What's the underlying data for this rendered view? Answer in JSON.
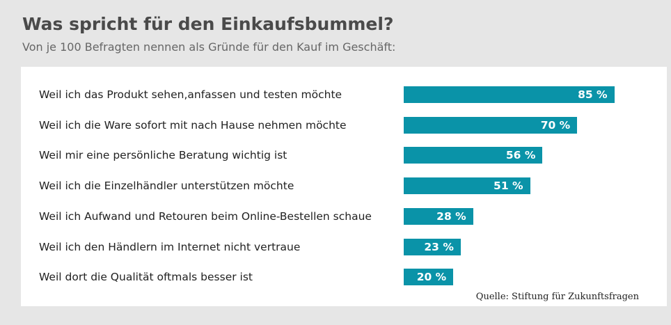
{
  "chart_data": {
    "type": "bar",
    "orientation": "horizontal",
    "title": "Was spricht für den Einkaufsbummel?",
    "subtitle": "Von je 100 Befragten nennen als Gründe für den Kauf im Geschäft:",
    "categories": [
      "Weil ich das Produkt sehen,anfassen und testen möchte",
      "Weil ich die Ware sofort mit nach Hause nehmen möchte",
      "Weil mir eine persönliche Beratung wichtig ist",
      "Weil ich die Einzelhändler unterstützen möchte",
      "Weil ich Aufwand und Retouren beim Online-Bestellen schaue",
      "Weil ich den Händlern im Internet nicht vertraue",
      "Weil dort die Qualität oftmals besser ist"
    ],
    "values": [
      85,
      70,
      56,
      51,
      28,
      23,
      20
    ],
    "value_labels": [
      "85 %",
      "70 %",
      "56 %",
      "51 %",
      "28 %",
      "23 %",
      "20 %"
    ],
    "unit": "%",
    "xlim": [
      0,
      100
    ],
    "bar_color": "#0a93a8",
    "grid": false,
    "legend": "none",
    "source": "Quelle: Stiftung für Zukunftsfragen"
  }
}
